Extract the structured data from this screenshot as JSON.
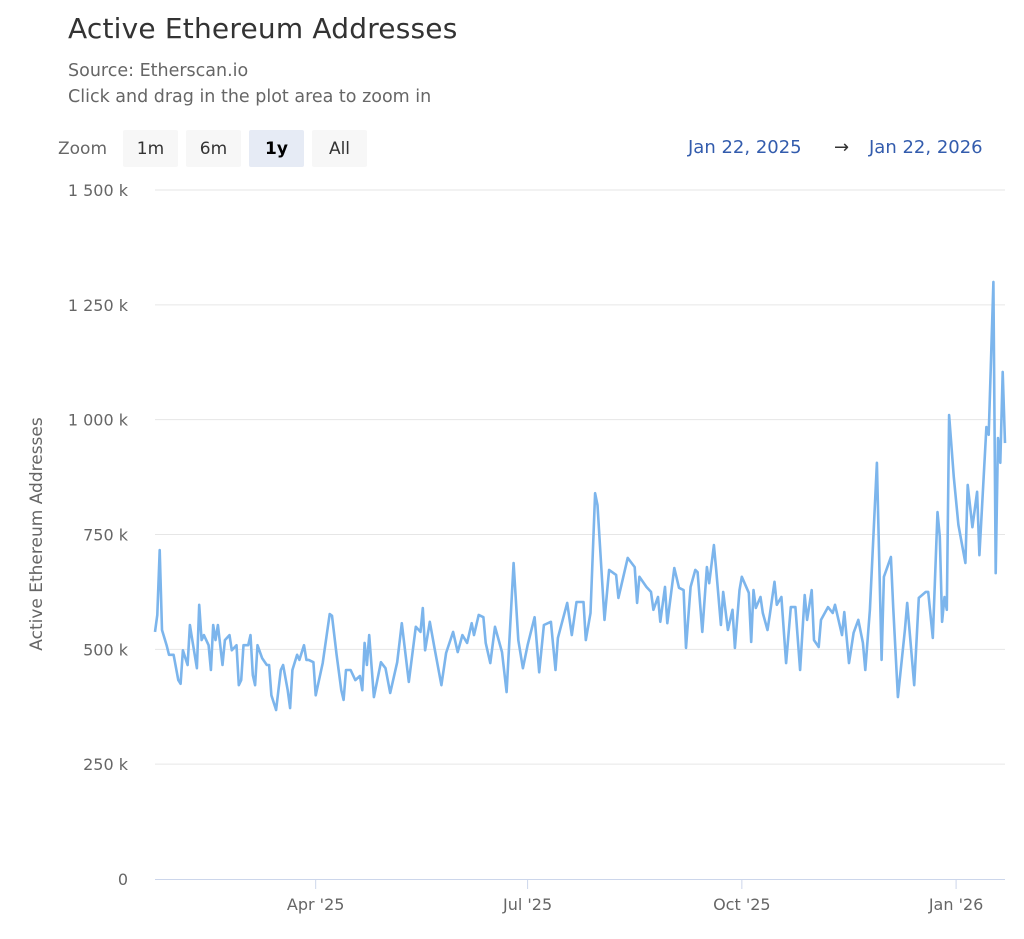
{
  "title": "Active Ethereum Addresses",
  "source": "Source: Etherscan.io",
  "hint": "Click and drag in the plot area to zoom in",
  "range_selector": {
    "label": "Zoom",
    "buttons": [
      {
        "label": "1m",
        "active": false
      },
      {
        "label": "6m",
        "active": false
      },
      {
        "label": "1y",
        "active": true
      },
      {
        "label": "All",
        "active": false
      }
    ],
    "from": "Jan 22, 2025",
    "arrow": "→",
    "to": "Jan 22, 2026"
  },
  "colors": {
    "line": "#7cb5ec",
    "range_text": "#335cad",
    "grid": "#e6e6e6"
  },
  "chart_data": {
    "type": "line",
    "title": "Active Ethereum Addresses",
    "ylabel": "Active Ethereum Addresses",
    "xlabel": "",
    "xlim": [
      "2025-01-22",
      "2026-01-22"
    ],
    "ylim": [
      0,
      1500000
    ],
    "grid": true,
    "legend": "none",
    "x_ticks": [
      {
        "date": "2025-04-01",
        "label": "Apr '25"
      },
      {
        "date": "2025-07-01",
        "label": "Jul '25"
      },
      {
        "date": "2025-10-01",
        "label": "Oct '25"
      },
      {
        "date": "2026-01-01",
        "label": "Jan '26"
      }
    ],
    "y_ticks": [
      {
        "value": 0,
        "label": "0"
      },
      {
        "value": 250000,
        "label": "250 k"
      },
      {
        "value": 500000,
        "label": "500 k"
      },
      {
        "value": 750000,
        "label": "750 k"
      },
      {
        "value": 1000000,
        "label": "1 000 k"
      },
      {
        "value": 1250000,
        "label": "1 250 k"
      },
      {
        "value": 1500000,
        "label": "1 500 k"
      }
    ],
    "series": [
      {
        "dates": [
          "2025-01-22",
          "2025-01-23",
          "2025-01-24",
          "2025-01-25",
          "2025-01-27",
          "2025-01-28",
          "2025-01-30",
          "2025-02-01",
          "2025-02-02",
          "2025-02-03",
          "2025-02-05",
          "2025-02-06",
          "2025-02-07",
          "2025-02-09",
          "2025-02-10",
          "2025-02-11",
          "2025-02-12",
          "2025-02-14",
          "2025-02-15",
          "2025-02-16",
          "2025-02-17",
          "2025-02-18",
          "2025-02-20",
          "2025-02-21",
          "2025-02-23",
          "2025-02-24",
          "2025-02-26",
          "2025-02-27",
          "2025-02-28",
          "2025-03-01",
          "2025-03-03",
          "2025-03-04",
          "2025-03-05",
          "2025-03-06",
          "2025-03-07",
          "2025-03-09",
          "2025-03-11",
          "2025-03-12",
          "2025-03-13",
          "2025-03-15",
          "2025-03-17",
          "2025-03-18",
          "2025-03-20",
          "2025-03-21",
          "2025-03-22",
          "2025-03-24",
          "2025-03-25",
          "2025-03-27",
          "2025-03-28",
          "2025-03-29",
          "2025-03-31",
          "2025-04-01",
          "2025-04-04",
          "2025-04-07",
          "2025-04-08",
          "2025-04-10",
          "2025-04-12",
          "2025-04-13",
          "2025-04-14",
          "2025-04-16",
          "2025-04-18",
          "2025-04-20",
          "2025-04-21",
          "2025-04-22",
          "2025-04-23",
          "2025-04-24",
          "2025-04-26",
          "2025-04-29",
          "2025-05-01",
          "2025-05-03",
          "2025-05-06",
          "2025-05-08",
          "2025-05-11",
          "2025-05-14",
          "2025-05-16",
          "2025-05-17",
          "2025-05-18",
          "2025-05-20",
          "2025-05-22",
          "2025-05-25",
          "2025-05-27",
          "2025-05-30",
          "2025-06-01",
          "2025-06-03",
          "2025-06-05",
          "2025-06-07",
          "2025-06-08",
          "2025-06-10",
          "2025-06-12",
          "2025-06-13",
          "2025-06-15",
          "2025-06-17",
          "2025-06-20",
          "2025-06-22",
          "2025-06-25",
          "2025-06-27",
          "2025-06-29",
          "2025-07-01",
          "2025-07-04",
          "2025-07-06",
          "2025-07-08",
          "2025-07-11",
          "2025-07-13",
          "2025-07-14",
          "2025-07-18",
          "2025-07-20",
          "2025-07-22",
          "2025-07-25",
          "2025-07-26",
          "2025-07-28",
          "2025-07-30",
          "2025-07-31",
          "2025-08-03",
          "2025-08-05",
          "2025-08-08",
          "2025-08-09",
          "2025-08-13",
          "2025-08-16",
          "2025-08-17",
          "2025-08-18",
          "2025-08-21",
          "2025-08-23",
          "2025-08-24",
          "2025-08-26",
          "2025-08-27",
          "2025-08-29",
          "2025-08-30",
          "2025-09-02",
          "2025-09-04",
          "2025-09-06",
          "2025-09-07",
          "2025-09-09",
          "2025-09-11",
          "2025-09-12",
          "2025-09-14",
          "2025-09-16",
          "2025-09-17",
          "2025-09-19",
          "2025-09-20",
          "2025-09-22",
          "2025-09-23",
          "2025-09-25",
          "2025-09-27",
          "2025-09-28",
          "2025-09-30",
          "2025-10-01",
          "2025-10-04",
          "2025-10-05",
          "2025-10-06",
          "2025-10-07",
          "2025-10-09",
          "2025-10-10",
          "2025-10-12",
          "2025-10-13",
          "2025-10-15",
          "2025-10-16",
          "2025-10-18",
          "2025-10-20",
          "2025-10-22",
          "2025-10-24",
          "2025-10-26",
          "2025-10-28",
          "2025-10-29",
          "2025-10-31",
          "2025-11-01",
          "2025-11-03",
          "2025-11-04",
          "2025-11-07",
          "2025-11-09",
          "2025-11-10",
          "2025-11-13",
          "2025-11-14",
          "2025-11-16",
          "2025-11-18",
          "2025-11-20",
          "2025-11-22",
          "2025-11-23",
          "2025-11-25",
          "2025-11-28",
          "2025-11-30",
          "2025-12-01",
          "2025-12-04",
          "2025-12-05",
          "2025-12-07",
          "2025-12-10",
          "2025-12-11",
          "2025-12-14",
          "2025-12-16",
          "2025-12-19",
          "2025-12-20",
          "2025-12-22",
          "2025-12-24",
          "2025-12-25",
          "2025-12-26",
          "2025-12-27",
          "2025-12-28",
          "2025-12-29",
          "2025-12-31",
          "2026-01-02",
          "2026-01-05",
          "2026-01-06",
          "2026-01-08",
          "2026-01-10",
          "2026-01-11",
          "2026-01-14",
          "2026-01-15",
          "2026-01-17",
          "2026-01-18",
          "2026-01-19",
          "2026-01-20",
          "2026-01-21",
          "2026-01-22"
        ],
        "values": [
          538000,
          575000,
          716000,
          542000,
          509000,
          488000,
          488000,
          433000,
          425000,
          498000,
          466000,
          553000,
          520000,
          459000,
          597000,
          520000,
          531000,
          509000,
          455000,
          553000,
          520000,
          553000,
          466000,
          520000,
          531000,
          498000,
          509000,
          422000,
          433000,
          509000,
          509000,
          531000,
          444000,
          422000,
          509000,
          481000,
          466000,
          466000,
          400000,
          368000,
          455000,
          466000,
          411000,
          372000,
          455000,
          488000,
          477000,
          509000,
          477000,
          477000,
          472000,
          400000,
          470000,
          577000,
          573000,
          488000,
          411000,
          390000,
          455000,
          455000,
          433000,
          442000,
          411000,
          514000,
          466000,
          531000,
          396000,
          472000,
          459000,
          405000,
          472000,
          557000,
          429000,
          549000,
          538000,
          590000,
          498000,
          560000,
          503000,
          422000,
          492000,
          538000,
          494000,
          531000,
          514000,
          557000,
          531000,
          575000,
          570000,
          514000,
          470000,
          549000,
          494000,
          407000,
          688000,
          520000,
          459000,
          509000,
          570000,
          450000,
          553000,
          560000,
          455000,
          525000,
          601000,
          531000,
          603000,
          603000,
          520000,
          579000,
          840000,
          814000,
          564000,
          673000,
          662000,
          612000,
          699000,
          679000,
          601000,
          658000,
          636000,
          625000,
          586000,
          614000,
          560000,
          636000,
          557000,
          677000,
          634000,
          629000,
          503000,
          636000,
          673000,
          668000,
          538000,
          679000,
          644000,
          727000,
          673000,
          553000,
          625000,
          542000,
          586000,
          503000,
          629000,
          658000,
          623000,
          516000,
          629000,
          590000,
          614000,
          579000,
          542000,
          575000,
          647000,
          597000,
          614000,
          470000,
          592000,
          592000,
          455000,
          618000,
          564000,
          629000,
          520000,
          505000,
          564000,
          592000,
          579000,
          597000,
          531000,
          581000,
          470000,
          536000,
          564000,
          514000,
          455000,
          586000,
          906000,
          477000,
          658000,
          701000,
          592000,
          396000,
          542000,
          601000,
          422000,
          612000,
          625000,
          625000,
          525000,
          799000,
          745000,
          560000,
          614000,
          586000,
          1010000,
          875000,
          771000,
          688000,
          858000,
          766000,
          843000,
          705000,
          984000,
          967000,
          1300000,
          666000,
          960000,
          906000,
          1104000,
          949000
        ]
      }
    ]
  }
}
